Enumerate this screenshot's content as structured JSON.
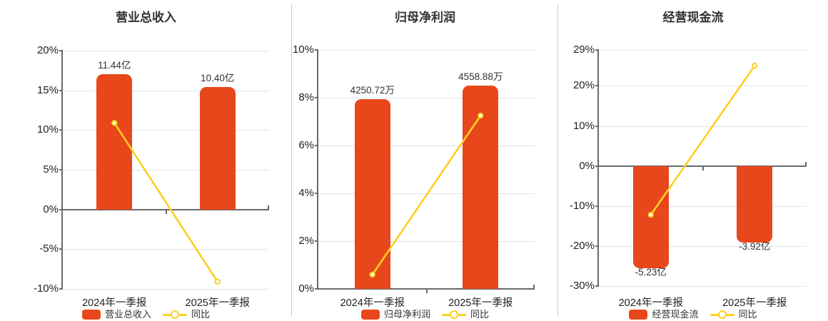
{
  "colors": {
    "bar": "#e8471c",
    "line": "#fcd01e",
    "grid": "#dde4ef",
    "axis": "#666a70",
    "text": "#2d2d2d",
    "divider": "#c8c8c8",
    "background": "#ffffff"
  },
  "chart_data": [
    {
      "type": "bar",
      "title": "营业总收入",
      "categories": [
        "2024年一季报",
        "2025年一季报"
      ],
      "series": [
        {
          "name": "营业总收入",
          "type": "bar",
          "value_labels": [
            "11.44亿",
            "10.40亿"
          ],
          "heights_on_pct_axis": [
            17.0,
            15.45
          ]
        },
        {
          "name": "同比",
          "type": "line",
          "values_pct": [
            10.9,
            -9.09
          ]
        }
      ],
      "y_ticks": [
        {
          "label": "20%",
          "value": 20
        },
        {
          "label": "15%",
          "value": 15
        },
        {
          "label": "10%",
          "value": 10
        },
        {
          "label": "5%",
          "value": 5
        },
        {
          "label": "0%",
          "value": 0
        },
        {
          "label": "-5%",
          "value": -5
        },
        {
          "label": "-10%",
          "value": -10
        }
      ],
      "ylim": [
        -10,
        20
      ],
      "legend": [
        "营业总收入",
        "同比"
      ],
      "legend_position": "bottom",
      "grid": true
    },
    {
      "type": "bar",
      "title": "归母净利润",
      "categories": [
        "2024年一季报",
        "2025年一季报"
      ],
      "series": [
        {
          "name": "归母净利润",
          "type": "bar",
          "value_labels": [
            "4250.72万",
            "4558.88万"
          ],
          "heights_on_pct_axis": [
            7.93,
            8.5
          ]
        },
        {
          "name": "同比",
          "type": "line",
          "values_pct": [
            0.6,
            7.25
          ]
        }
      ],
      "y_ticks": [
        {
          "label": "10%",
          "value": 10
        },
        {
          "label": "8%",
          "value": 8
        },
        {
          "label": "6%",
          "value": 6
        },
        {
          "label": "4%",
          "value": 4
        },
        {
          "label": "2%",
          "value": 2
        },
        {
          "label": "0%",
          "value": 0
        }
      ],
      "ylim": [
        0,
        10
      ],
      "legend": [
        "归母净利润",
        "同比"
      ],
      "legend_position": "bottom",
      "grid": true
    },
    {
      "type": "bar",
      "title": "经营现金流",
      "categories": [
        "2024年一季报",
        "2025年一季报"
      ],
      "series": [
        {
          "name": "经营现金流",
          "type": "bar",
          "value_labels": [
            "-5.23亿",
            "-3.92亿"
          ],
          "heights_on_pct_axis": [
            -25.5,
            -19.11
          ]
        },
        {
          "name": "同比",
          "type": "line",
          "values_pct": [
            -12.2,
            25.05
          ]
        }
      ],
      "y_ticks": [
        {
          "label": "29%",
          "value": 29
        },
        {
          "label": "20%",
          "value": 20
        },
        {
          "label": "10%",
          "value": 10
        },
        {
          "label": "0%",
          "value": 0
        },
        {
          "label": "-10%",
          "value": -10
        },
        {
          "label": "-20%",
          "value": -20
        },
        {
          "label": "-30%",
          "value": -30
        }
      ],
      "ylim": [
        -30,
        29
      ],
      "legend": [
        "经营现金流",
        "同比"
      ],
      "legend_position": "bottom",
      "grid": true
    }
  ]
}
